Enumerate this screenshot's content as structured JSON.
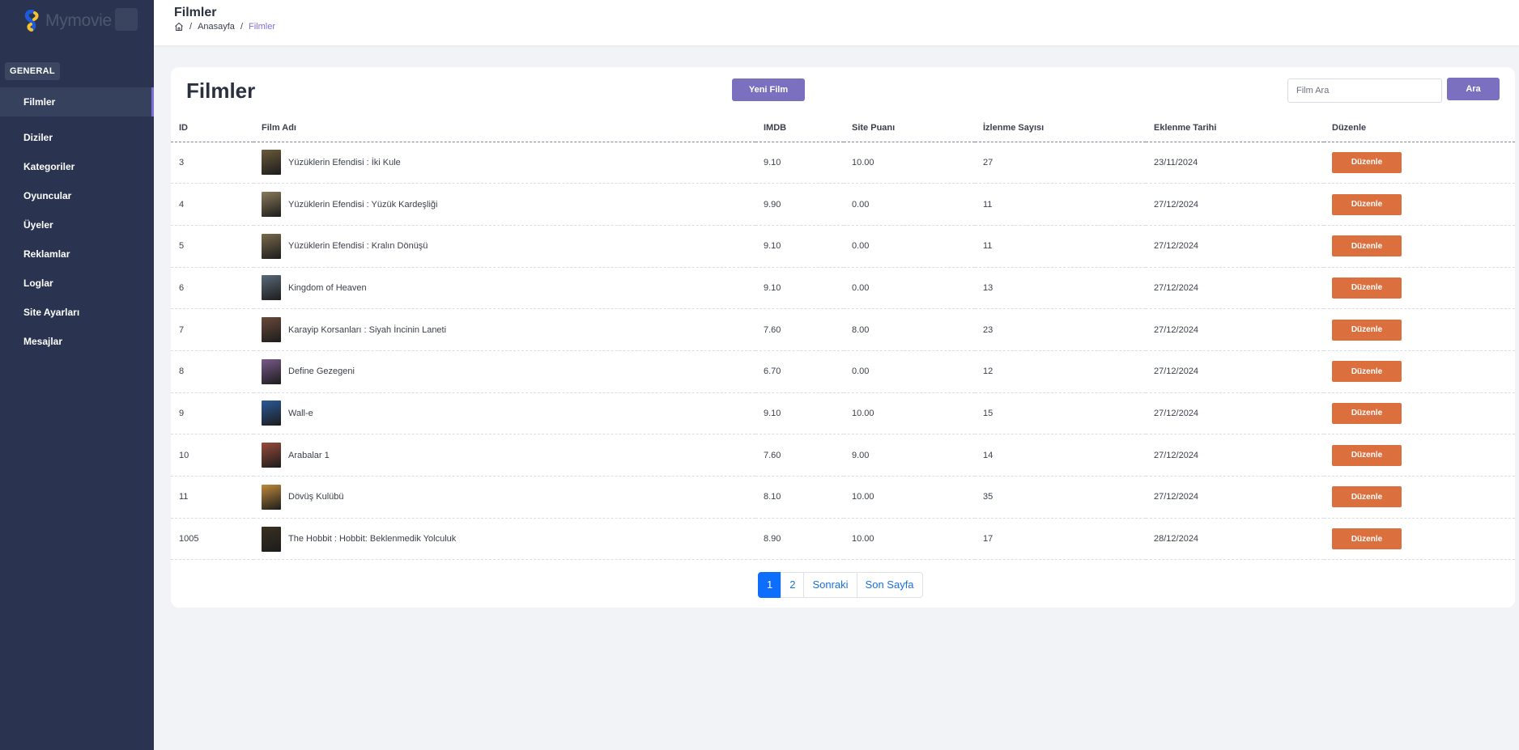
{
  "brand": {
    "name": "Mymovie"
  },
  "sidebar": {
    "section": "GENERAL",
    "items": [
      {
        "label": "Filmler",
        "active": true
      },
      {
        "label": "Diziler"
      },
      {
        "label": "Kategoriler"
      },
      {
        "label": "Oyuncular"
      },
      {
        "label": "Üyeler"
      },
      {
        "label": "Reklamlar"
      },
      {
        "label": "Loglar"
      },
      {
        "label": "Site Ayarları"
      },
      {
        "label": "Mesajlar"
      }
    ]
  },
  "header": {
    "title": "Filmler",
    "breadcrumb": {
      "home": "Anasayfa",
      "current": "Filmler"
    }
  },
  "main": {
    "title": "Filmler",
    "new_button": "Yeni Film",
    "search": {
      "placeholder": "Film Ara",
      "button": "Ara"
    },
    "columns": [
      "ID",
      "Film Adı",
      "IMDB",
      "Site Puanı",
      "İzlenme Sayısı",
      "Eklenme Tarihi",
      "Düzenle"
    ],
    "rows": [
      {
        "id": "3",
        "name": "Yüzüklerin Efendisi : İki Kule",
        "imdb": "9.10",
        "site": "10.00",
        "views": "27",
        "date": "23/11/2024",
        "edit": "Düzenle",
        "poster": "#6b5a3a"
      },
      {
        "id": "4",
        "name": "Yüzüklerin Efendisi : Yüzük Kardeşliği",
        "imdb": "9.90",
        "site": "0.00",
        "views": "11",
        "date": "27/12/2024",
        "edit": "Düzenle",
        "poster": "#8a7a5a"
      },
      {
        "id": "5",
        "name": "Yüzüklerin Efendisi : Kralın Dönüşü",
        "imdb": "9.10",
        "site": "0.00",
        "views": "11",
        "date": "27/12/2024",
        "edit": "Düzenle",
        "poster": "#7a6a4a"
      },
      {
        "id": "6",
        "name": "Kingdom of Heaven",
        "imdb": "9.10",
        "site": "0.00",
        "views": "13",
        "date": "27/12/2024",
        "edit": "Düzenle",
        "poster": "#5a6a7a"
      },
      {
        "id": "7",
        "name": "Karayip Korsanları : Siyah İncinin Laneti",
        "imdb": "7.60",
        "site": "8.00",
        "views": "23",
        "date": "27/12/2024",
        "edit": "Düzenle",
        "poster": "#6a4a3a"
      },
      {
        "id": "8",
        "name": "Define Gezegeni",
        "imdb": "6.70",
        "site": "0.00",
        "views": "12",
        "date": "27/12/2024",
        "edit": "Düzenle",
        "poster": "#7a5a8a"
      },
      {
        "id": "9",
        "name": "Wall-e",
        "imdb": "9.10",
        "site": "10.00",
        "views": "15",
        "date": "27/12/2024",
        "edit": "Düzenle",
        "poster": "#2a5a9a"
      },
      {
        "id": "10",
        "name": "Arabalar 1",
        "imdb": "7.60",
        "site": "9.00",
        "views": "14",
        "date": "27/12/2024",
        "edit": "Düzenle",
        "poster": "#9a4a3a"
      },
      {
        "id": "11",
        "name": "Dövüş Kulübü",
        "imdb": "8.10",
        "site": "10.00",
        "views": "35",
        "date": "27/12/2024",
        "edit": "Düzenle",
        "poster": "#c08a3a"
      },
      {
        "id": "1005",
        "name": "The Hobbit : Hobbit: Beklenmedik Yolculuk",
        "imdb": "8.90",
        "site": "10.00",
        "views": "17",
        "date": "28/12/2024",
        "edit": "Düzenle",
        "poster": "#3a3020"
      }
    ],
    "pagination": {
      "pages": [
        "1",
        "2"
      ],
      "active": "1",
      "next": "Sonraki",
      "last": "Son Sayfa"
    }
  },
  "colors": {
    "sidebar": "#2a3450",
    "accent": "#7b6fbf",
    "edit": "#dc6f3e",
    "page_active": "#0d6efd"
  }
}
